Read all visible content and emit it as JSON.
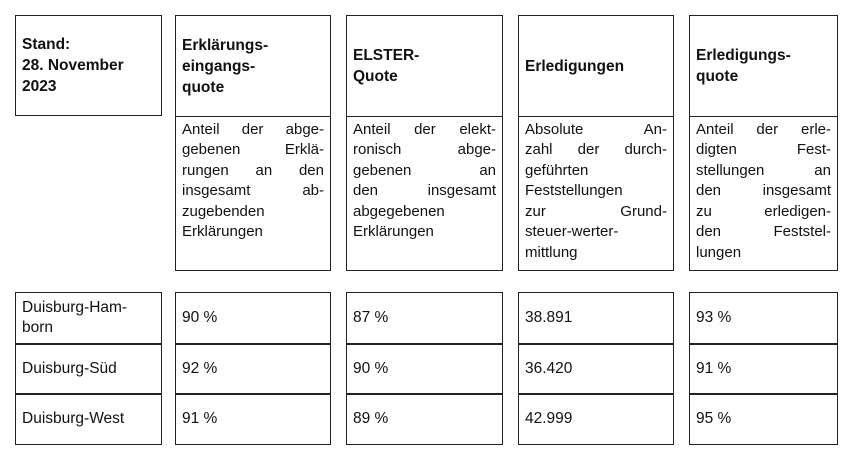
{
  "header": {
    "stand": [
      "Stand:",
      "28. November",
      "2023"
    ]
  },
  "columns": [
    {
      "title": [
        "Erklärungs-",
        "eingangs-",
        "quote"
      ],
      "description": [
        "Anteil der abge-",
        "gebenen Erklä-",
        "rungen an den",
        "insgesamt ab-",
        "zugebenden",
        "Erklärungen"
      ]
    },
    {
      "title": [
        "ELSTER-",
        "Quote"
      ],
      "description": [
        "Anteil der elekt-",
        "ronisch abge-",
        "gebenen an",
        "den insgesamt",
        "abgegebenen",
        "Erklärungen"
      ]
    },
    {
      "title": [
        "Erledigungen"
      ],
      "description": [
        "Absolute An-",
        "zahl der durch-",
        "geführten",
        "Feststellungen",
        "zur Grund-",
        "steuer-werter-",
        "mittlung"
      ]
    },
    {
      "title": [
        "Erledigungs-",
        "quote"
      ],
      "description": [
        "Anteil der erle-",
        "digten Fest-",
        "stellungen an",
        "den insgesamt",
        "zu erledigen-",
        "den Feststel-",
        "lungen"
      ]
    }
  ],
  "rows": [
    {
      "label": [
        "Duisburg-Ham-",
        "born"
      ],
      "values": [
        "90 %",
        "87 %",
        "38.891",
        "93 %"
      ]
    },
    {
      "label": [
        "Duisburg-Süd"
      ],
      "values": [
        "92 %",
        "90 %",
        "36.420",
        "91 %"
      ]
    },
    {
      "label": [
        "Duisburg-West"
      ],
      "values": [
        "91 %",
        "89 %",
        "42.999",
        "95 %"
      ]
    }
  ]
}
